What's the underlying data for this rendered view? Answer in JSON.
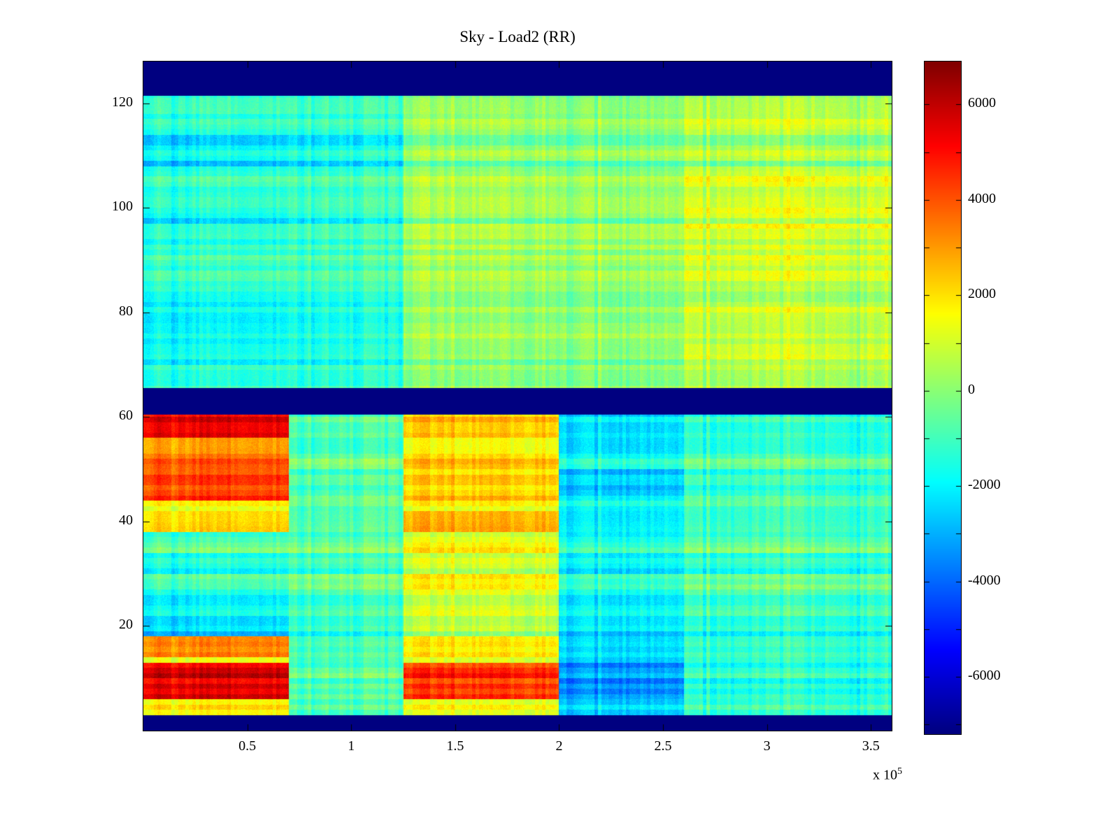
{
  "title": "Sky - Load2 (RR)",
  "colors": {
    "background": "#ffffff",
    "axis": "#000000"
  },
  "chart_data": {
    "type": "heatmap",
    "title": "Sky - Load2 (RR)",
    "colormap": "jet",
    "x_range": [
      0,
      3.6
    ],
    "y_range": [
      0,
      128
    ],
    "x_axis_multiplier_prefix": "x 10",
    "x_axis_multiplier_exponent": "5",
    "x_ticks": [
      0.5,
      1,
      1.5,
      2,
      2.5,
      3,
      3.5
    ],
    "x_tick_labels": [
      "0.5",
      "1",
      "1.5",
      "2",
      "2.5",
      "3",
      "3.5"
    ],
    "y_ticks": [
      20,
      40,
      60,
      80,
      100,
      120
    ],
    "y_tick_labels": [
      "20",
      "40",
      "60",
      "80",
      "100",
      "120"
    ],
    "colorbar": {
      "vmin": -7200,
      "vmax": 6900,
      "tick_values": [
        -6000,
        -4000,
        -2000,
        0,
        2000,
        4000,
        6000
      ],
      "tick_labels": [
        "-6000",
        "-4000",
        "-2000",
        "0",
        "2000",
        "4000",
        "6000"
      ],
      "minor_step": 1000
    },
    "x_edges": [
      0,
      0.7,
      1.25,
      2.0,
      2.6,
      3.6
    ],
    "rows": [
      {
        "y": [
          121.5,
          128
        ],
        "v": [
          -7500,
          -7500,
          -7500,
          -7500,
          -7500
        ]
      },
      {
        "y": [
          118,
          121.5
        ],
        "v": [
          -600,
          -500,
          600,
          300,
          900
        ]
      },
      {
        "y": [
          114,
          118
        ],
        "v": [
          -900,
          -700,
          700,
          400,
          1200
        ]
      },
      {
        "y": [
          108,
          114
        ],
        "v": [
          -1600,
          -1200,
          500,
          300,
          800
        ]
      },
      {
        "y": [
          104,
          108
        ],
        "v": [
          -800,
          -600,
          700,
          400,
          1400
        ]
      },
      {
        "y": [
          100,
          104
        ],
        "v": [
          -1100,
          -800,
          600,
          300,
          1000
        ]
      },
      {
        "y": [
          96,
          100
        ],
        "v": [
          -1400,
          -900,
          650,
          400,
          1500
        ]
      },
      {
        "y": [
          92,
          96
        ],
        "v": [
          -1300,
          -900,
          500,
          300,
          900
        ]
      },
      {
        "y": [
          86,
          92
        ],
        "v": [
          -700,
          -500,
          700,
          500,
          1300
        ]
      },
      {
        "y": [
          82,
          86
        ],
        "v": [
          -1000,
          -700,
          600,
          300,
          800
        ]
      },
      {
        "y": [
          78,
          82
        ],
        "v": [
          -1500,
          -1100,
          550,
          300,
          1300
        ]
      },
      {
        "y": [
          74,
          78
        ],
        "v": [
          -1600,
          -1200,
          600,
          400,
          900
        ]
      },
      {
        "y": [
          70,
          74
        ],
        "v": [
          -1200,
          -900,
          500,
          300,
          1400
        ]
      },
      {
        "y": [
          65.5,
          70
        ],
        "v": [
          -800,
          -600,
          600,
          400,
          1000
        ]
      },
      {
        "y": [
          60.5,
          65.5
        ],
        "v": [
          -7500,
          -7500,
          -7500,
          -7500,
          -7500
        ]
      },
      {
        "y": [
          56,
          60.5
        ],
        "v": [
          5800,
          -300,
          2800,
          -2000,
          -1000
        ]
      },
      {
        "y": [
          50,
          56
        ],
        "v": [
          3600,
          -400,
          2200,
          -1800,
          -800
        ]
      },
      {
        "y": [
          44,
          50
        ],
        "v": [
          4600,
          -400,
          2600,
          -2300,
          -900
        ]
      },
      {
        "y": [
          42,
          44
        ],
        "v": [
          1800,
          -300,
          1800,
          -1500,
          -600
        ]
      },
      {
        "y": [
          38,
          42
        ],
        "v": [
          2600,
          -200,
          3200,
          -1700,
          -700
        ]
      },
      {
        "y": [
          34,
          38
        ],
        "v": [
          -600,
          -300,
          1600,
          -1400,
          -500
        ]
      },
      {
        "y": [
          28,
          34
        ],
        "v": [
          -1000,
          -400,
          1500,
          -1500,
          -800
        ]
      },
      {
        "y": [
          22,
          28
        ],
        "v": [
          -1400,
          -500,
          1400,
          -1600,
          -600
        ]
      },
      {
        "y": [
          18,
          22
        ],
        "v": [
          -1800,
          -600,
          1200,
          -1700,
          -900
        ]
      },
      {
        "y": [
          14,
          18
        ],
        "v": [
          3800,
          -300,
          2400,
          -1900,
          -700
        ]
      },
      {
        "y": [
          13,
          14
        ],
        "v": [
          2000,
          -200,
          1800,
          -2000,
          -600
        ]
      },
      {
        "y": [
          6,
          13
        ],
        "v": [
          5900,
          -300,
          4800,
          -3100,
          -1100
        ]
      },
      {
        "y": [
          3,
          6
        ],
        "v": [
          2200,
          -400,
          1800,
          -2200,
          -800
        ]
      },
      {
        "y": [
          0,
          3
        ],
        "v": [
          -7500,
          -7500,
          -7500,
          -7500,
          -7500
        ]
      }
    ]
  }
}
